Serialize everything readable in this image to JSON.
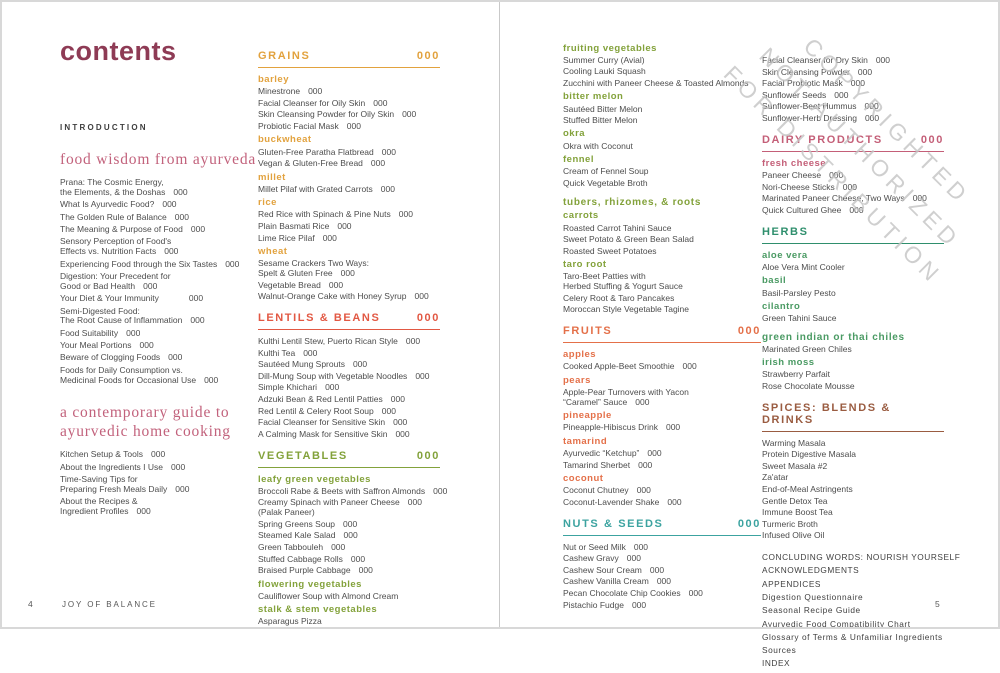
{
  "meta": {
    "book_title": "JOY OF BALANCE",
    "page_left_number": "4",
    "page_right_number": "5"
  },
  "colors": {
    "title": "#8e3b55",
    "serif": "#c2627c",
    "orange": "#e2a23e",
    "red": "#e25843",
    "green": "#83a23b",
    "fruit": "#e47049",
    "teal": "#3ca3a0",
    "rose": "#c45f78",
    "seagreen": "#2f8f6d",
    "herb": "#4a9a63",
    "brown": "#9a5c41",
    "text": "#4d4d4d",
    "caps": "#3e3e3e",
    "back": "#3f3f3f",
    "watermark": "#c4c4c4",
    "footer": "#575757"
  },
  "watermark": {
    "lines": [
      "COPYRIGHTED",
      "NOT AUTHORIZED",
      "FOR DISTRIBUTION"
    ]
  },
  "left_page": {
    "title": "contents",
    "intro_label": "INTRODUCTION",
    "col1": [
      {
        "t": "serif",
        "lines": [
          "food wisdom from ayurveda"
        ]
      },
      {
        "t": "item",
        "lines": [
          "Prana: The Cosmic Energy,",
          "the Elements, & the Doshas"
        ],
        "page": "000"
      },
      {
        "t": "item",
        "lines": [
          "What Is Ayurvedic Food?"
        ],
        "page": "000"
      },
      {
        "t": "item",
        "lines": [
          "The Golden Rule of Balance"
        ],
        "page": "000"
      },
      {
        "t": "item",
        "lines": [
          "The Meaning & Purpose of Food"
        ],
        "page": "000"
      },
      {
        "t": "item",
        "lines": [
          "Sensory Perception of Food's",
          "Effects vs. Nutrition Facts"
        ],
        "page": "000"
      },
      {
        "t": "item",
        "lines": [
          "Experiencing Food through the Six Tastes"
        ],
        "page": "000"
      },
      {
        "t": "item",
        "lines": [
          "Digestion: Your Precedent for",
          "Good or Bad Health"
        ],
        "page": "000"
      },
      {
        "t": "item",
        "lines": [
          "Your Diet & Your Immunity"
        ],
        "page": "000",
        "wide": true
      },
      {
        "t": "item",
        "lines": [
          "Semi-Digested Food:",
          "The Root Cause of Inflammation"
        ],
        "page": "000"
      },
      {
        "t": "item",
        "lines": [
          "Food Suitability"
        ],
        "page": "000"
      },
      {
        "t": "item",
        "lines": [
          "Your Meal Portions"
        ],
        "page": "000"
      },
      {
        "t": "item",
        "lines": [
          "Beware of Clogging Foods"
        ],
        "page": "000"
      },
      {
        "t": "item",
        "lines": [
          "Foods for Daily Consumption vs.",
          "Medicinal Foods for Occasional Use"
        ],
        "page": "000"
      },
      {
        "t": "serif",
        "lines": [
          "a contemporary guide to",
          "ayurvedic home cooking"
        ]
      },
      {
        "t": "item",
        "lines": [
          "Kitchen Setup & Tools"
        ],
        "page": "000"
      },
      {
        "t": "item",
        "lines": [
          "About the Ingredients I Use"
        ],
        "page": "000"
      },
      {
        "t": "item",
        "lines": [
          "Time-Saving Tips for",
          "Preparing Fresh Meals Daily"
        ],
        "page": "000"
      },
      {
        "t": "item",
        "lines": [
          "About the Recipes &",
          "Ingredient Profiles"
        ],
        "page": "000"
      }
    ],
    "col2": [
      {
        "t": "major",
        "text": "GRAINS",
        "page": "000",
        "c": "orange"
      },
      {
        "t": "sub",
        "text": "barley",
        "c": "orange"
      },
      {
        "t": "item",
        "lines": [
          "Minestrone"
        ],
        "page": "000"
      },
      {
        "t": "item",
        "lines": [
          "Facial Cleanser for Oily Skin"
        ],
        "page": "000"
      },
      {
        "t": "item",
        "lines": [
          "Skin Cleansing Powder for Oily Skin"
        ],
        "page": "000"
      },
      {
        "t": "item",
        "lines": [
          "Probiotic Facial Mask"
        ],
        "page": "000"
      },
      {
        "t": "sub",
        "text": "buckwheat",
        "c": "orange"
      },
      {
        "t": "item",
        "lines": [
          "Gluten-Free Paratha Flatbread"
        ],
        "page": "000"
      },
      {
        "t": "item",
        "lines": [
          "Vegan & Gluten-Free Bread"
        ],
        "page": "000"
      },
      {
        "t": "sub",
        "text": "millet",
        "c": "orange"
      },
      {
        "t": "item",
        "lines": [
          "Millet Pilaf with Grated Carrots"
        ],
        "page": "000"
      },
      {
        "t": "sub",
        "text": "rice",
        "c": "orange"
      },
      {
        "t": "item",
        "lines": [
          "Red Rice with Spinach & Pine Nuts"
        ],
        "page": "000"
      },
      {
        "t": "item",
        "lines": [
          "Plain Basmati Rice"
        ],
        "page": "000"
      },
      {
        "t": "item",
        "lines": [
          "Lime Rice Pilaf"
        ],
        "page": "000"
      },
      {
        "t": "sub",
        "text": "wheat",
        "c": "orange"
      },
      {
        "t": "item",
        "lines": [
          "Sesame Crackers Two Ways:",
          "Spelt & Gluten Free"
        ],
        "page": "000"
      },
      {
        "t": "item",
        "lines": [
          "Vegetable Bread"
        ],
        "page": "000"
      },
      {
        "t": "item",
        "lines": [
          "Walnut-Orange Cake with Honey Syrup"
        ],
        "page": "000"
      },
      {
        "t": "major",
        "text": "LENTILS & BEANS",
        "page": "000",
        "c": "red"
      },
      {
        "t": "item",
        "lines": [
          "Kulthi Lentil Stew, Puerto Rican Style"
        ],
        "page": "000"
      },
      {
        "t": "item",
        "lines": [
          "Kulthi Tea"
        ],
        "page": "000"
      },
      {
        "t": "item",
        "lines": [
          "Sautéed Mung Sprouts"
        ],
        "page": "000"
      },
      {
        "t": "item",
        "lines": [
          "Dill-Mung Soup with Vegetable Noodles"
        ],
        "page": "000"
      },
      {
        "t": "item",
        "lines": [
          "Simple Khichari"
        ],
        "page": "000"
      },
      {
        "t": "item",
        "lines": [
          "Adzuki Bean & Red Lentil Patties"
        ],
        "page": "000"
      },
      {
        "t": "item",
        "lines": [
          "Red Lentil & Celery Root Soup"
        ],
        "page": "000"
      },
      {
        "t": "item",
        "lines": [
          "Facial Cleanser for Sensitive Skin"
        ],
        "page": "000"
      },
      {
        "t": "item",
        "lines": [
          "A Calming Mask for Sensitive Skin"
        ],
        "page": "000"
      },
      {
        "t": "major",
        "text": "VEGETABLES",
        "page": "000",
        "c": "green"
      },
      {
        "t": "sub",
        "text": "leafy green vegetables",
        "c": "green"
      },
      {
        "t": "item",
        "lines": [
          "Broccoli Rabe & Beets with Saffron Almonds"
        ],
        "page": "000"
      },
      {
        "t": "item",
        "lines": [
          "Creamy Spinach with Paneer Cheese",
          "(Palak Paneer)"
        ],
        "page": "000",
        "pageline": 0
      },
      {
        "t": "item",
        "lines": [
          "Spring Greens Soup"
        ],
        "page": "000"
      },
      {
        "t": "item",
        "lines": [
          "Steamed Kale Salad"
        ],
        "page": "000"
      },
      {
        "t": "item",
        "lines": [
          "Green Tabbouleh"
        ],
        "page": "000"
      },
      {
        "t": "item",
        "lines": [
          "Stuffed Cabbage Rolls"
        ],
        "page": "000"
      },
      {
        "t": "item",
        "lines": [
          "Braised Purple Cabbage"
        ],
        "page": "000"
      },
      {
        "t": "sub",
        "text": "flowering vegetables",
        "c": "green"
      },
      {
        "t": "item",
        "lines": [
          "Cauliflower Soup with Almond Cream"
        ]
      },
      {
        "t": "sub",
        "text": "stalk & stem vegetables",
        "c": "green"
      },
      {
        "t": "item",
        "lines": [
          "Asparagus Pizza"
        ]
      }
    ]
  },
  "right_page": {
    "col1": [
      {
        "t": "sub",
        "text": "fruiting vegetables",
        "c": "green"
      },
      {
        "t": "item",
        "lines": [
          "Summer Curry (Avial)"
        ]
      },
      {
        "t": "item",
        "lines": [
          "Cooling Lauki Squash"
        ]
      },
      {
        "t": "item",
        "lines": [
          "Zucchini with Paneer Cheese & Toasted Almonds"
        ]
      },
      {
        "t": "sub",
        "text": "bitter melon",
        "c": "green"
      },
      {
        "t": "item",
        "lines": [
          "Sautéed Bitter Melon"
        ]
      },
      {
        "t": "item",
        "lines": [
          "Stuffed Bitter Melon"
        ]
      },
      {
        "t": "sub",
        "text": "okra",
        "c": "green"
      },
      {
        "t": "item",
        "lines": [
          "Okra with Coconut"
        ]
      },
      {
        "t": "sub",
        "text": "fennel",
        "c": "green"
      },
      {
        "t": "item",
        "lines": [
          "Cream of Fennel Soup"
        ]
      },
      {
        "t": "item",
        "lines": [
          "Quick Vegetable Broth"
        ]
      },
      {
        "t": "group",
        "text": "tubers, rhizomes, & roots",
        "c": "green"
      },
      {
        "t": "sub",
        "text": "carrots",
        "c": "green"
      },
      {
        "t": "item",
        "lines": [
          "Roasted Carrot Tahini Sauce"
        ]
      },
      {
        "t": "item",
        "lines": [
          "Sweet Potato & Green Bean Salad"
        ]
      },
      {
        "t": "item",
        "lines": [
          "Roasted Sweet Potatoes"
        ]
      },
      {
        "t": "sub",
        "text": "taro root",
        "c": "green"
      },
      {
        "t": "item",
        "lines": [
          "Taro-Beet Patties with",
          "Herbed Stuffing & Yogurt Sauce"
        ]
      },
      {
        "t": "item",
        "lines": [
          "Celery Root & Taro Pancakes"
        ]
      },
      {
        "t": "item",
        "lines": [
          "Moroccan Style Vegetable Tagine"
        ]
      },
      {
        "t": "major",
        "text": "FRUITS",
        "page": "000",
        "c": "fruit"
      },
      {
        "t": "sub",
        "text": "apples",
        "c": "fruit"
      },
      {
        "t": "item",
        "lines": [
          "Cooked Apple-Beet Smoothie"
        ],
        "page": "000"
      },
      {
        "t": "sub",
        "text": "pears",
        "c": "fruit"
      },
      {
        "t": "item",
        "lines": [
          "Apple-Pear Turnovers with Yacon",
          "“Caramel” Sauce"
        ],
        "page": "000"
      },
      {
        "t": "sub",
        "text": "pineapple",
        "c": "fruit"
      },
      {
        "t": "item",
        "lines": [
          "Pineapple-Hibiscus Drink"
        ],
        "page": "000"
      },
      {
        "t": "sub",
        "text": "tamarind",
        "c": "fruit"
      },
      {
        "t": "item",
        "lines": [
          "Ayurvedic “Ketchup”"
        ],
        "page": "000"
      },
      {
        "t": "item",
        "lines": [
          "Tamarind Sherbet"
        ],
        "page": "000"
      },
      {
        "t": "sub",
        "text": "coconut",
        "c": "fruit"
      },
      {
        "t": "item",
        "lines": [
          "Coconut Chutney"
        ],
        "page": "000"
      },
      {
        "t": "item",
        "lines": [
          "Coconut-Lavender Shake"
        ],
        "page": "000"
      },
      {
        "t": "major",
        "text": "NUTS & SEEDS",
        "page": "000",
        "c": "teal"
      },
      {
        "t": "item",
        "lines": [
          "Nut or Seed Milk"
        ],
        "page": "000"
      },
      {
        "t": "item",
        "lines": [
          "Cashew Gravy"
        ],
        "page": "000"
      },
      {
        "t": "item",
        "lines": [
          "Cashew Sour Cream"
        ],
        "page": "000"
      },
      {
        "t": "item",
        "lines": [
          "Cashew Vanilla Cream"
        ],
        "page": "000"
      },
      {
        "t": "item",
        "lines": [
          "Pecan Chocolate Chip Cookies"
        ],
        "page": "000"
      },
      {
        "t": "item",
        "lines": [
          "Pistachio Fudge"
        ],
        "page": "000"
      }
    ],
    "col2": [
      {
        "t": "item",
        "lines": [
          "Facial Cleanser for Dry Skin"
        ],
        "page": "000"
      },
      {
        "t": "item",
        "lines": [
          "Skin Cleansing Powder"
        ],
        "page": "000"
      },
      {
        "t": "item",
        "lines": [
          "Facial Probiotic Mask"
        ],
        "page": "000"
      },
      {
        "t": "item",
        "lines": [
          "Sunflower Seeds"
        ],
        "page": "000"
      },
      {
        "t": "item",
        "lines": [
          "Sunflower-Beet Hummus"
        ],
        "page": "000"
      },
      {
        "t": "item",
        "lines": [
          "Sunflower-Herb Dressing"
        ],
        "page": "000"
      },
      {
        "t": "major",
        "text": "DAIRY PRODUCTS",
        "page": "000",
        "c": "rose"
      },
      {
        "t": "sub",
        "text": "fresh cheese",
        "c": "rose"
      },
      {
        "t": "item",
        "lines": [
          "Paneer Cheese"
        ],
        "page": "000"
      },
      {
        "t": "item",
        "lines": [
          "Nori-Cheese Sticks"
        ],
        "page": "000"
      },
      {
        "t": "item",
        "lines": [
          "Marinated Paneer Cheese, Two Ways"
        ],
        "page": "000"
      },
      {
        "t": "item",
        "lines": [
          "Quick Cultured Ghee"
        ],
        "page": "000"
      },
      {
        "t": "major",
        "text": "HERBS",
        "c": "seagreen"
      },
      {
        "t": "sub",
        "text": "aloe vera",
        "c": "herb"
      },
      {
        "t": "item",
        "lines": [
          "Aloe Vera Mint Cooler"
        ]
      },
      {
        "t": "sub",
        "text": "basil",
        "c": "herb"
      },
      {
        "t": "item",
        "lines": [
          "Basil-Parsley Pesto"
        ]
      },
      {
        "t": "sub",
        "text": "cilantro",
        "c": "herb"
      },
      {
        "t": "item",
        "lines": [
          "Green Tahini Sauce"
        ]
      },
      {
        "t": "group",
        "text": "green indian or thai chiles",
        "c": "herb"
      },
      {
        "t": "item",
        "lines": [
          "Marinated Green Chiles"
        ]
      },
      {
        "t": "sub",
        "text": "irish moss",
        "c": "herb"
      },
      {
        "t": "item",
        "lines": [
          "Strawberry Parfait"
        ]
      },
      {
        "t": "item",
        "lines": [
          "Rose Chocolate Mousse"
        ]
      },
      {
        "t": "major",
        "text": "SPICES: BLENDS & DRINKS",
        "c": "brown"
      },
      {
        "t": "item",
        "lines": [
          "Warming Masala"
        ]
      },
      {
        "t": "item",
        "lines": [
          "Protein Digestive Masala"
        ]
      },
      {
        "t": "item",
        "lines": [
          "Sweet Masala #2"
        ]
      },
      {
        "t": "item",
        "lines": [
          "Za'atar"
        ]
      },
      {
        "t": "item",
        "lines": [
          "End-of-Meal Astringents"
        ]
      },
      {
        "t": "item",
        "lines": [
          "Gentle Detox Tea"
        ]
      },
      {
        "t": "item",
        "lines": [
          "Immune Boost Tea"
        ]
      },
      {
        "t": "item",
        "lines": [
          "Turmeric Broth"
        ]
      },
      {
        "t": "item",
        "lines": [
          "Infused Olive Oil"
        ]
      },
      {
        "t": "space"
      },
      {
        "t": "back",
        "text": "CONCLUDING WORDS: NOURISH YOURSELF"
      },
      {
        "t": "back",
        "text": "ACKNOWLEDGMENTS"
      },
      {
        "t": "back",
        "text": "APPENDICES"
      },
      {
        "t": "back",
        "text": "Digestion Questionnaire"
      },
      {
        "t": "back",
        "text": "Seasonal Recipe Guide"
      },
      {
        "t": "back",
        "text": "Ayurvedic Food Compatibility Chart"
      },
      {
        "t": "back",
        "text": "Glossary of Terms & Unfamiliar Ingredients"
      },
      {
        "t": "back",
        "text": "Sources"
      },
      {
        "t": "back",
        "text": "INDEX"
      }
    ]
  }
}
